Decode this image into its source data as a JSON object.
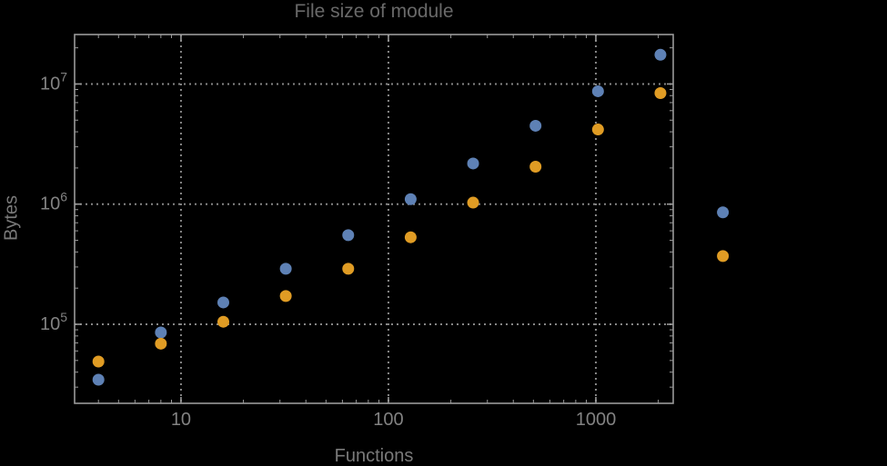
{
  "chart_data": {
    "type": "scatter",
    "title": "File size of module",
    "xlabel": "Functions",
    "ylabel": "Bytes",
    "xscale": "log",
    "yscale": "log",
    "xlim": [
      3.07,
      2360
    ],
    "ylim": [
      22000,
      25800000
    ],
    "grid": "dotted-at-decades",
    "legend": "none",
    "x_ticks": [
      {
        "value": 10,
        "label": "10"
      },
      {
        "value": 100,
        "label": "100"
      },
      {
        "value": 1000,
        "label": "1000"
      }
    ],
    "y_ticks": [
      {
        "value": 100000,
        "base": "10",
        "exponent": "5"
      },
      {
        "value": 1000000,
        "base": "10",
        "exponent": "6"
      },
      {
        "value": 10000000,
        "base": "10",
        "exponent": "7"
      }
    ],
    "series": [
      {
        "id": "blue",
        "color": "#5E81B5",
        "points": [
          [
            4,
            34600
          ],
          [
            8,
            85500
          ],
          [
            16,
            152000
          ],
          [
            32,
            290000
          ],
          [
            64,
            552000
          ],
          [
            128,
            1100000
          ],
          [
            256,
            2180000
          ],
          [
            512,
            4490000
          ],
          [
            1024,
            8700000
          ],
          [
            2048,
            17500000
          ],
          [
            4096,
            855000
          ]
        ]
      },
      {
        "id": "orange",
        "color": "#E09C24",
        "points": [
          [
            4,
            49000
          ],
          [
            8,
            69000
          ],
          [
            16,
            105000
          ],
          [
            32,
            172000
          ],
          [
            64,
            290000
          ],
          [
            128,
            530000
          ],
          [
            256,
            1030000
          ],
          [
            512,
            2050000
          ],
          [
            1024,
            4180000
          ],
          [
            2048,
            8400000
          ],
          [
            4096,
            370000
          ]
        ]
      }
    ],
    "colors": {
      "background": "#000000",
      "frame": "#9a9a9a",
      "grid": "#868686",
      "title": "#696969",
      "axis_label": "#7a7a7a",
      "tick_label": "#828282"
    }
  }
}
